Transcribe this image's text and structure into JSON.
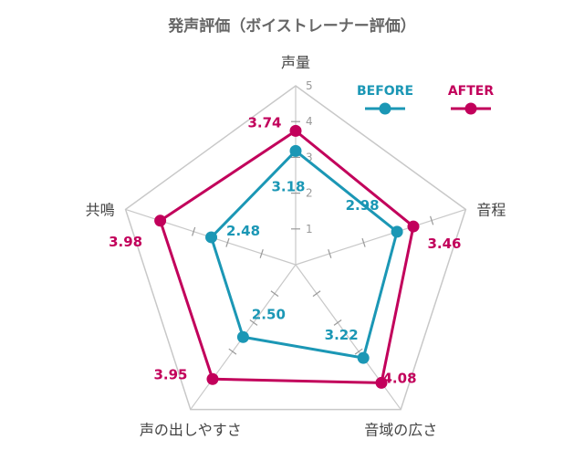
{
  "chart_data": {
    "type": "radar",
    "title": "発声評価（ボイストレーナー評価）",
    "axes": [
      "声量",
      "音程",
      "音域の広さ",
      "声の出しやすさ",
      "共鳴"
    ],
    "rlim": [
      0,
      5
    ],
    "ticks": [
      "1",
      "2",
      "3",
      "4",
      "5"
    ],
    "series": [
      {
        "name": "BEFORE",
        "values": [
          3.18,
          2.98,
          3.22,
          2.5,
          2.48
        ],
        "labels": [
          "3.18",
          "2.98",
          "3.22",
          "2.50",
          "2.48"
        ],
        "color": "#1b97b5"
      },
      {
        "name": "AFTER",
        "values": [
          3.74,
          3.46,
          4.08,
          3.95,
          3.98
        ],
        "labels": [
          "3.74",
          "3.46",
          "4.08",
          "3.95",
          "3.98"
        ],
        "color": "#c2005b"
      }
    ],
    "grid_color": "#c8c8c8",
    "legend_position": "top-right"
  }
}
